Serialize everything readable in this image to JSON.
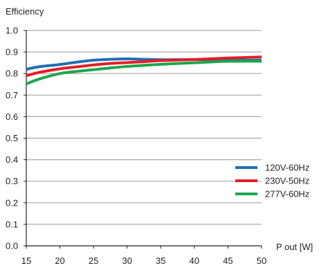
{
  "chart_data": {
    "type": "line",
    "title": "",
    "ylabel": "Efficiency",
    "xlabel": "P out [W]",
    "xlim": [
      15,
      50
    ],
    "ylim": [
      0.0,
      1.0
    ],
    "x_ticks": [
      "15",
      "20",
      "25",
      "30",
      "35",
      "40",
      "45",
      "50"
    ],
    "y_ticks": [
      "0.0",
      "0.1",
      "0.2",
      "0.3",
      "0.4",
      "0.5",
      "0.6",
      "0.7",
      "0.8",
      "0.9",
      "1.0"
    ],
    "grid": "horizontal",
    "legend_position": "right",
    "x": [
      15,
      17,
      20,
      22.5,
      25,
      27.5,
      30,
      32.5,
      35,
      40,
      45,
      50
    ],
    "series": [
      {
        "name": "120V-60Hz",
        "color": "#1f6fb5",
        "values": [
          0.82,
          0.832,
          0.842,
          0.853,
          0.862,
          0.866,
          0.868,
          0.866,
          0.864,
          0.865,
          0.862,
          0.862
        ]
      },
      {
        "name": "230V-50Hz",
        "color": "#e41e26",
        "values": [
          0.79,
          0.806,
          0.822,
          0.831,
          0.84,
          0.847,
          0.851,
          0.855,
          0.86,
          0.865,
          0.872,
          0.877
        ]
      },
      {
        "name": "277V-60Hz",
        "color": "#1ea64a",
        "values": [
          0.752,
          0.775,
          0.8,
          0.81,
          0.818,
          0.826,
          0.833,
          0.838,
          0.843,
          0.85,
          0.857,
          0.857
        ]
      }
    ]
  }
}
